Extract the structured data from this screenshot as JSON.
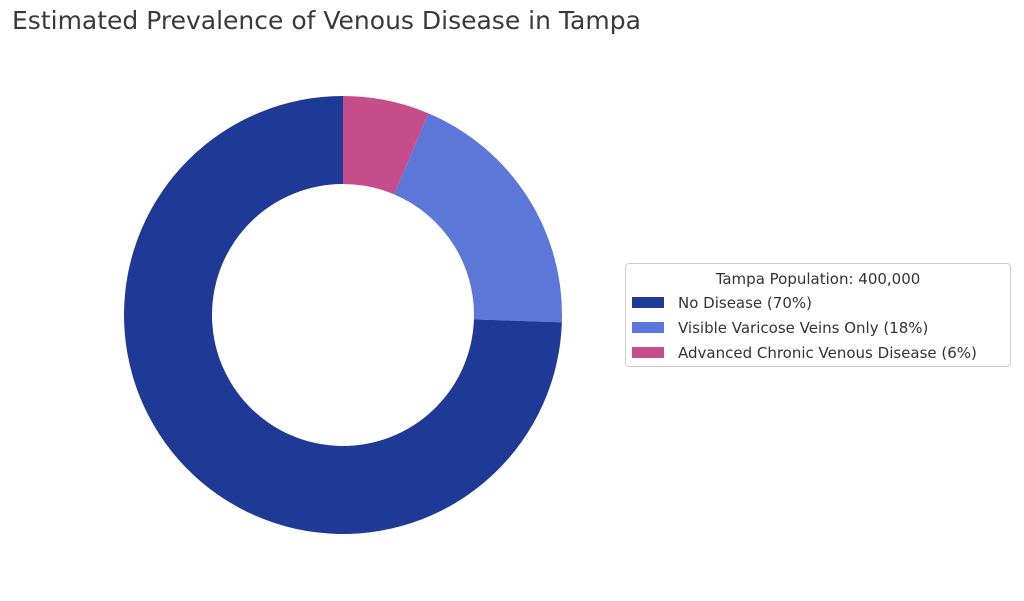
{
  "chart_data": {
    "type": "pie",
    "title": "Estimated Prevalence of Venous Disease in Tampa",
    "donut": true,
    "legend_title": "Tampa Population: 400,000",
    "legend_position": "right",
    "slices": [
      {
        "label": "No Disease (70%)",
        "value": 70,
        "color": "#1f3a96"
      },
      {
        "label": "Visible Varicose Veins Only (18%)",
        "value": 18,
        "color": "#5d77d8"
      },
      {
        "label": "Advanced Chronic Venous Disease (6%)",
        "value": 6,
        "color": "#c64d8c"
      }
    ]
  }
}
